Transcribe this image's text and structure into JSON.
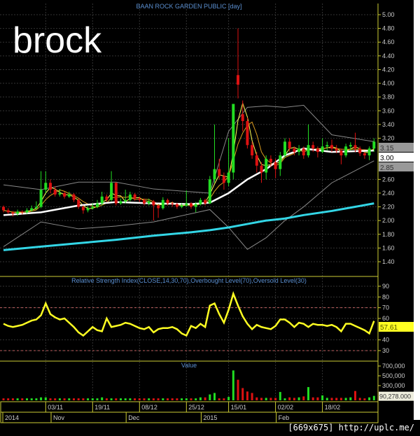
{
  "title": "BAAN ROCK GARDEN PUBLIC [day]",
  "watermark": "brock",
  "footer": "[669x675] http://uplc.me/",
  "colors": {
    "up": "#22dd22",
    "down": "#dd1111",
    "unchanged": "#ffff33",
    "axis": "#cccc33",
    "title": "#5b8fd0",
    "ma_long": "#33d6e6",
    "ma_mid": "#ffffff",
    "bands": "#888888",
    "rsi": "#ffff22"
  },
  "chart_data": [
    {
      "type": "candlestick",
      "title": "BAAN ROCK GARDEN PUBLIC [day]",
      "ylim": [
        1.3,
        5.1
      ],
      "y_ticks": [
        "5.00",
        "4.80",
        "4.60",
        "4.40",
        "4.20",
        "4.00",
        "3.80",
        "3.60",
        "3.40",
        "3.20",
        "2.60",
        "2.40",
        "2.20",
        "2.00",
        "1.80",
        "1.60",
        "1.40"
      ],
      "price_labels": {
        "upper": "3.15",
        "last": "3.00",
        "lower": "2.85"
      },
      "x_ticks": [
        "03/11",
        "19/11",
        "08/12",
        "25/12",
        "15/01",
        "02/02",
        "18/02"
      ],
      "x_tick_index": [
        9,
        19,
        29,
        39,
        48,
        58,
        68
      ],
      "period_labels": [
        "2014",
        "Nov",
        "Dec",
        "2015",
        "Feb"
      ],
      "period_index": [
        0,
        10,
        26,
        42,
        58
      ],
      "grid": true,
      "candles": [
        [
          2.2,
          2.22,
          2.12,
          2.15
        ],
        [
          2.15,
          2.18,
          2.1,
          2.12
        ],
        [
          2.12,
          2.14,
          2.06,
          2.1
        ],
        [
          2.1,
          2.16,
          2.07,
          2.13
        ],
        [
          2.13,
          2.15,
          2.09,
          2.12
        ],
        [
          2.12,
          2.18,
          2.1,
          2.15
        ],
        [
          2.15,
          2.22,
          2.13,
          2.18
        ],
        [
          2.18,
          2.28,
          2.16,
          2.2
        ],
        [
          2.2,
          2.72,
          2.18,
          2.45
        ],
        [
          2.45,
          2.72,
          2.4,
          2.55
        ],
        [
          2.55,
          2.6,
          2.4,
          2.45
        ],
        [
          2.45,
          2.5,
          2.35,
          2.38
        ],
        [
          2.38,
          2.46,
          2.35,
          2.4
        ],
        [
          2.4,
          2.42,
          2.32,
          2.35
        ],
        [
          2.35,
          2.42,
          2.33,
          2.38
        ],
        [
          2.38,
          2.4,
          2.27,
          2.3
        ],
        [
          2.3,
          2.32,
          2.17,
          2.2
        ],
        [
          2.2,
          2.22,
          2.1,
          2.15
        ],
        [
          2.15,
          2.21,
          2.12,
          2.18
        ],
        [
          2.18,
          2.25,
          2.16,
          2.2
        ],
        [
          2.2,
          2.3,
          2.18,
          2.25
        ],
        [
          2.25,
          2.42,
          2.22,
          2.35
        ],
        [
          2.35,
          2.38,
          2.27,
          2.3
        ],
        [
          2.3,
          2.72,
          2.28,
          2.55
        ],
        [
          2.55,
          2.56,
          2.22,
          2.25
        ],
        [
          2.25,
          2.32,
          2.23,
          2.28
        ],
        [
          2.28,
          2.45,
          2.25,
          2.3
        ],
        [
          2.3,
          2.42,
          2.28,
          2.38
        ],
        [
          2.38,
          2.4,
          2.29,
          2.32
        ],
        [
          2.32,
          2.35,
          2.27,
          2.3
        ],
        [
          2.3,
          2.32,
          2.22,
          2.25
        ],
        [
          2.25,
          2.32,
          2.22,
          2.28
        ],
        [
          2.28,
          2.3,
          2.0,
          2.22
        ],
        [
          2.22,
          2.24,
          2.04,
          2.18
        ],
        [
          2.18,
          2.34,
          2.16,
          2.3
        ],
        [
          2.3,
          2.32,
          2.22,
          2.25
        ],
        [
          2.25,
          2.28,
          2.2,
          2.24
        ],
        [
          2.24,
          2.26,
          2.17,
          2.2
        ],
        [
          2.2,
          2.25,
          2.18,
          2.22
        ],
        [
          2.22,
          2.44,
          2.2,
          2.25
        ],
        [
          2.25,
          2.27,
          2.17,
          2.2
        ],
        [
          2.2,
          2.27,
          2.12,
          2.24
        ],
        [
          2.24,
          2.33,
          2.22,
          2.3
        ],
        [
          2.3,
          2.32,
          2.22,
          2.25
        ],
        [
          2.25,
          2.65,
          2.24,
          2.6
        ],
        [
          2.6,
          3.4,
          2.55,
          2.75
        ],
        [
          2.75,
          2.9,
          2.6,
          2.65
        ],
        [
          2.65,
          2.7,
          2.45,
          2.55
        ],
        [
          2.55,
          3.2,
          2.5,
          2.7
        ],
        [
          2.7,
          3.7,
          2.6,
          3.7
        ],
        [
          4.12,
          4.8,
          3.78,
          3.98
        ],
        [
          3.55,
          3.75,
          3.3,
          3.45
        ],
        [
          3.45,
          3.5,
          3.05,
          3.1
        ],
        [
          3.1,
          3.15,
          2.9,
          2.95
        ],
        [
          2.95,
          3.0,
          2.7,
          2.8
        ],
        [
          2.8,
          2.85,
          2.55,
          2.7
        ],
        [
          2.7,
          2.95,
          2.6,
          2.9
        ],
        [
          2.9,
          2.95,
          2.78,
          2.85
        ],
        [
          2.85,
          2.9,
          2.62,
          2.75
        ],
        [
          2.75,
          3.0,
          2.65,
          2.95
        ],
        [
          2.95,
          3.2,
          2.92,
          3.15
        ],
        [
          3.15,
          3.2,
          3.0,
          3.05
        ],
        [
          3.05,
          3.08,
          2.95,
          3.0
        ],
        [
          3.0,
          3.1,
          2.95,
          3.05
        ],
        [
          3.05,
          3.08,
          2.9,
          2.95
        ],
        [
          2.95,
          3.4,
          2.92,
          3.1
        ],
        [
          3.1,
          3.15,
          3.0,
          3.05
        ],
        [
          3.05,
          3.08,
          2.92,
          3.0
        ],
        [
          3.0,
          3.2,
          2.98,
          3.08
        ],
        [
          3.08,
          3.15,
          3.02,
          3.1
        ],
        [
          3.1,
          3.18,
          3.0,
          3.05
        ],
        [
          3.05,
          3.1,
          2.98,
          3.02
        ],
        [
          3.02,
          3.05,
          2.82,
          2.95
        ],
        [
          2.95,
          3.12,
          2.92,
          3.08
        ],
        [
          3.08,
          3.14,
          3.02,
          3.1
        ],
        [
          3.1,
          3.28,
          3.0,
          3.05
        ],
        [
          3.05,
          3.08,
          2.94,
          2.98
        ],
        [
          2.98,
          3.0,
          2.9,
          2.95
        ],
        [
          2.95,
          3.08,
          2.88,
          3.05
        ],
        [
          3.05,
          3.2,
          3.0,
          3.15
        ]
      ],
      "overlay_index": [
        0,
        8,
        16,
        24,
        32,
        40,
        44,
        48,
        52,
        56,
        60,
        64,
        70,
        79
      ],
      "overlays": {
        "ma_mid": [
          2.08,
          2.12,
          2.22,
          2.27,
          2.25,
          2.24,
          2.26,
          2.4,
          2.6,
          2.75,
          2.95,
          3.05,
          3.0,
          3.02
        ],
        "ma_long": [
          1.57,
          1.62,
          1.67,
          1.72,
          1.78,
          1.83,
          1.86,
          1.9,
          1.95,
          2.0,
          2.03,
          2.08,
          2.14,
          2.25
        ],
        "band_upper": [
          2.52,
          2.45,
          2.56,
          2.56,
          2.46,
          2.42,
          2.4,
          3.3,
          3.65,
          3.67,
          3.65,
          3.68,
          3.25,
          3.15
        ],
        "band_lower": [
          1.62,
          1.98,
          1.88,
          1.92,
          1.98,
          2.1,
          2.16,
          1.9,
          1.58,
          1.75,
          2.0,
          2.2,
          2.55,
          2.87
        ]
      }
    },
    {
      "type": "line",
      "title": "Relative Strength Index(CLOSE,14,30,70),Overbought Level(70),Oversold Level(30)",
      "ylim": [
        25,
        95
      ],
      "y_ticks": [
        "90",
        "80",
        "70",
        "60",
        "40",
        "30"
      ],
      "overbought": 70,
      "oversold": 30,
      "last_label": "57.61",
      "values": [
        55,
        53,
        52,
        53,
        54,
        56,
        58,
        59,
        63,
        74,
        64,
        61,
        59,
        60,
        56,
        52,
        47,
        44,
        48,
        52,
        49,
        48,
        60,
        52,
        53,
        54,
        56,
        55,
        53,
        51,
        50,
        52,
        47,
        50,
        51,
        51,
        52,
        50,
        46,
        44,
        53,
        51,
        55,
        52,
        72,
        74,
        64,
        56,
        68,
        83,
        72,
        62,
        55,
        50,
        54,
        52,
        51,
        50,
        53,
        59,
        59,
        56,
        52,
        56,
        55,
        52,
        55,
        54,
        54,
        53,
        54,
        52,
        48,
        55,
        55,
        53,
        51,
        49,
        46,
        57.61
      ]
    },
    {
      "type": "bar",
      "title": "Value",
      "ylim": [
        0,
        800000
      ],
      "y_ticks": [
        "700,000",
        "500,000",
        "300,000"
      ],
      "last_label": "90,278.000",
      "values": [
        40000,
        40000,
        40000,
        40000,
        40000,
        40000,
        40000,
        40000,
        60000,
        60000,
        40000,
        40000,
        40000,
        40000,
        40000,
        40000,
        40000,
        40000,
        40000,
        40000,
        40000,
        60000,
        40000,
        40000,
        40000,
        40000,
        40000,
        40000,
        40000,
        40000,
        40000,
        40000,
        40000,
        40000,
        40000,
        40000,
        40000,
        40000,
        40000,
        40000,
        40000,
        40000,
        60000,
        60000,
        120000,
        150000,
        40000,
        40000,
        70000,
        610000,
        420000,
        250000,
        180000,
        150000,
        60000,
        50000,
        50000,
        50000,
        50000,
        170000,
        40000,
        60000,
        50000,
        60000,
        80000,
        270000,
        60000,
        60000,
        100000,
        50000,
        50000,
        50000,
        50000,
        50000,
        60000,
        190000,
        50000,
        40000,
        60000,
        90278
      ]
    }
  ]
}
